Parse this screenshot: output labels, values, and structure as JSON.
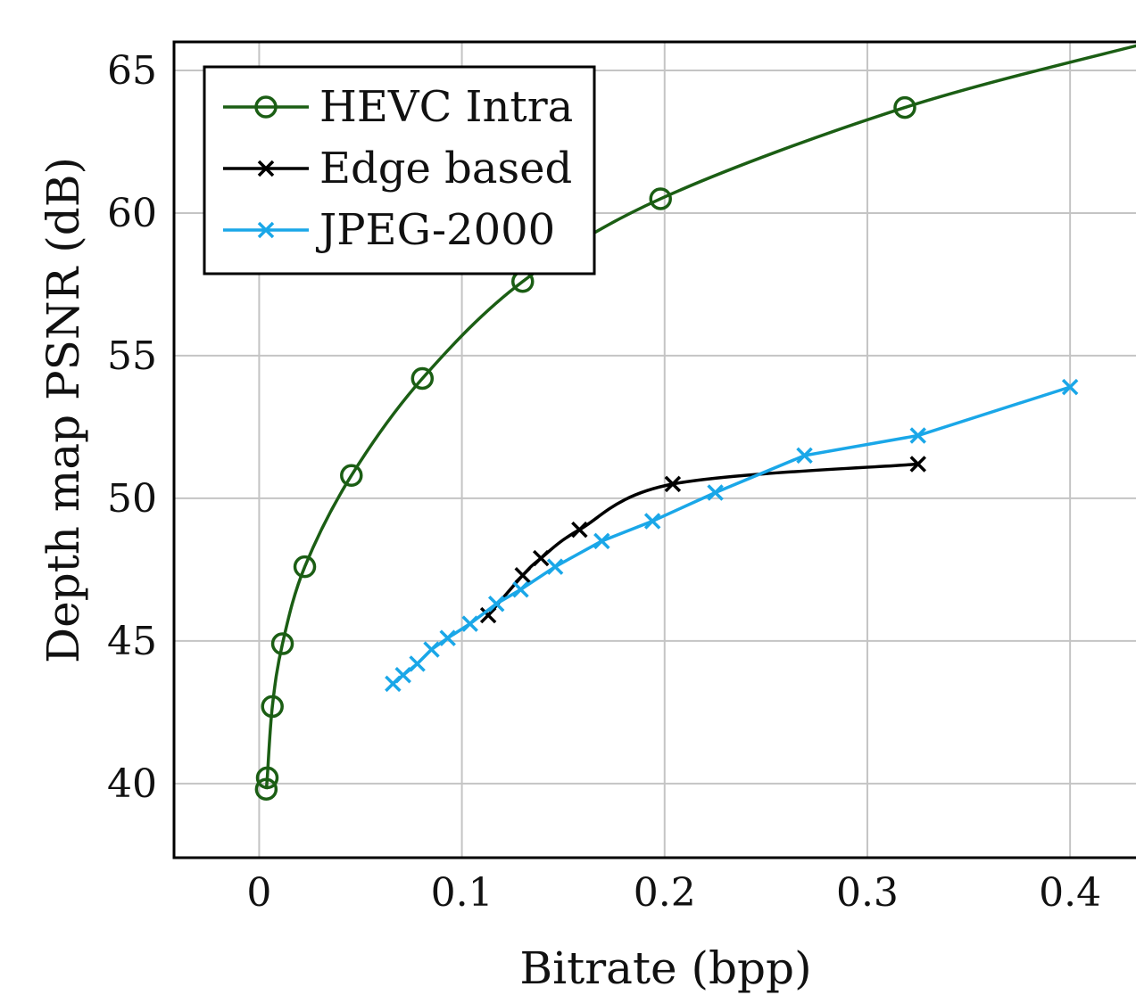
{
  "chart_data": {
    "type": "line",
    "title": "",
    "xlabel": "Bitrate (bpp)",
    "ylabel": "Depth map PSNR (dB)",
    "xlim": [
      -0.042,
      0.44
    ],
    "ylim": [
      37.4,
      66.0
    ],
    "xticks": [
      0,
      0.1,
      0.2,
      0.3,
      0.4
    ],
    "xtick_labels": [
      "0",
      "0.1",
      "0.2",
      "0.3",
      "0.4"
    ],
    "yticks": [
      40,
      45,
      50,
      55,
      60,
      65
    ],
    "ytick_labels": [
      "40",
      "45",
      "50",
      "55",
      "60",
      "65"
    ],
    "grid": true,
    "legend_position": "top-left",
    "series": [
      {
        "name": "HEVC Intra",
        "color": "#1b5e14",
        "marker": "circle",
        "smooth": true,
        "x": [
          0.0035,
          0.004,
          0.0065,
          0.0115,
          0.0225,
          0.0455,
          0.0805,
          0.13,
          0.198,
          0.3185,
          0.44
        ],
        "y": [
          39.8,
          40.2,
          42.7,
          44.9,
          47.6,
          50.8,
          54.2,
          57.6,
          60.5,
          63.7,
          66.0
        ],
        "marked": [
          true,
          true,
          true,
          true,
          true,
          true,
          true,
          true,
          true,
          true,
          false
        ]
      },
      {
        "name": "Edge based",
        "color": "#000000",
        "marker": "x",
        "smooth": true,
        "x": [
          0.113,
          0.13,
          0.139,
          0.158,
          0.204,
          0.325
        ],
        "y": [
          45.9,
          47.3,
          47.9,
          48.9,
          50.5,
          51.2
        ]
      },
      {
        "name": "JPEG-2000",
        "color": "#1aa7e8",
        "marker": "x",
        "smooth": false,
        "x": [
          0.066,
          0.071,
          0.078,
          0.085,
          0.093,
          0.104,
          0.117,
          0.129,
          0.146,
          0.169,
          0.194,
          0.225,
          0.269,
          0.325,
          0.4
        ],
        "y": [
          43.5,
          43.8,
          44.2,
          44.7,
          45.1,
          45.6,
          46.3,
          46.8,
          47.6,
          48.5,
          49.2,
          50.2,
          51.5,
          52.2,
          53.9
        ]
      }
    ]
  }
}
